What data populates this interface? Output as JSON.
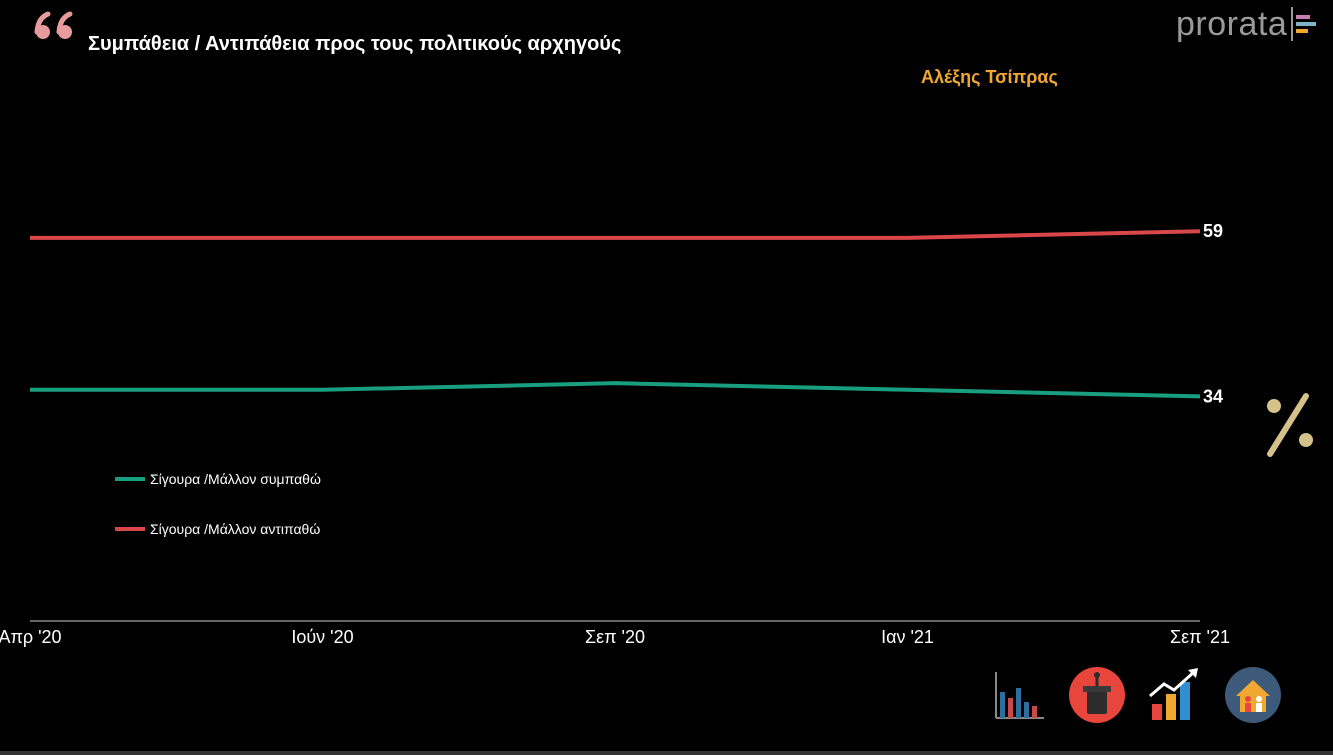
{
  "header": {
    "title": "Συμπάθεια / Αντιπάθεια προς τους πολιτικούς αρχηγούς",
    "subtitle": "Αλέξης Τσίπρας",
    "logo_text": "prorata"
  },
  "colors": {
    "background": "#000000",
    "subtitle": "#f0a830",
    "sympathy": "#1a9e80",
    "antipathy": "#d9474a",
    "percent": "#d4c28a",
    "quote": "#e79b9d"
  },
  "chart_data": {
    "type": "line",
    "title": "Συμπάθεια / Αντιπάθεια προς τους πολιτικούς αρχηγούς",
    "subtitle": "Αλέξης Τσίπρας",
    "x": [
      "Απρ '20",
      "Ιούν '20",
      "Σεπ '20",
      "Ιαν '21",
      "Σεπ '21"
    ],
    "series": [
      {
        "name": "Σίγουρα /Μάλλον συμπαθώ",
        "color": "#1a9e80",
        "values": [
          35,
          35,
          36,
          35,
          34
        ],
        "end_label": "34"
      },
      {
        "name": "Σίγουρα /Μάλλον αντιπαθώ",
        "color": "#d9474a",
        "values": [
          58,
          58,
          58,
          58,
          59
        ],
        "end_label": "59"
      }
    ],
    "ylim": [
      0,
      94
    ],
    "grid": false,
    "legend_position": "left-middle",
    "unit_symbol": "%"
  },
  "footer": {
    "icons": [
      "bar-chart-icon",
      "podium-microphone-icon",
      "trend-growth-icon",
      "family-home-icon"
    ]
  }
}
